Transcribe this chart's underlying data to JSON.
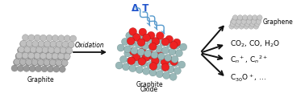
{
  "bg_color": "#ffffff",
  "fig_width": 3.78,
  "fig_height": 1.37,
  "dpi": 100,
  "labels": {
    "graphite": "Graphite",
    "oxidation": "Oxidation",
    "graphite_oxide_line1": "Graphite",
    "graphite_oxide_line2": "Oxide",
    "delta_T": "Δ T",
    "graphene": "Graphene",
    "co2": "CO$_2$, CO, H$_2$O",
    "cn": "C$_n$$^+$, C$_n$$^{2+}$",
    "c30": "C$_{30}$O$^+$, ..."
  },
  "arrow_color": "#111111",
  "delta_T_color": "#2255cc",
  "wave_color": "#5599cc",
  "graphite_color_light": "#c0c0c0",
  "graphite_color_dark": "#999999",
  "carbon_color": "#99b8b8",
  "oxygen_color": "#ee2222",
  "graphene_color": "#b0b0b0",
  "label_fontsize": 5.5,
  "chem_fontsize": 6.5,
  "oxidation_fontsize": 5.5,
  "delta_T_fontsize": 8.5
}
